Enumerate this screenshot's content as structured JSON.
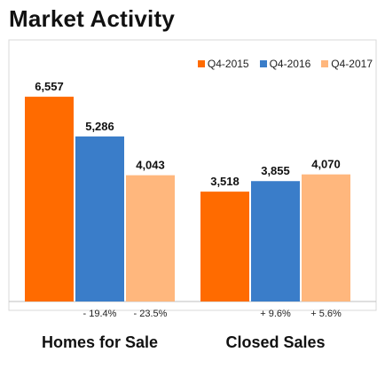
{
  "chart_data": {
    "type": "bar",
    "title": "Market Activity",
    "categories": [
      "Homes for Sale",
      "Closed Sales"
    ],
    "series": [
      {
        "name": "Q4-2015",
        "color": "#FF6B00",
        "values": [
          6557,
          3518
        ],
        "labels": [
          "6,557",
          "3,518"
        ],
        "changes": [
          "",
          ""
        ]
      },
      {
        "name": "Q4-2016",
        "color": "#3A7DC9",
        "values": [
          5286,
          3855
        ],
        "labels": [
          "5,286",
          "3,855"
        ],
        "changes": [
          "- 19.4%",
          "+ 9.6%"
        ]
      },
      {
        "name": "Q4-2017",
        "color": "#FFB77D",
        "values": [
          4043,
          4070
        ],
        "labels": [
          "4,043",
          "4,070"
        ],
        "changes": [
          "- 23.5%",
          "+ 5.6%"
        ]
      }
    ],
    "ylim": [
      0,
      6900
    ],
    "grid": false,
    "legend_position": "top-right"
  }
}
